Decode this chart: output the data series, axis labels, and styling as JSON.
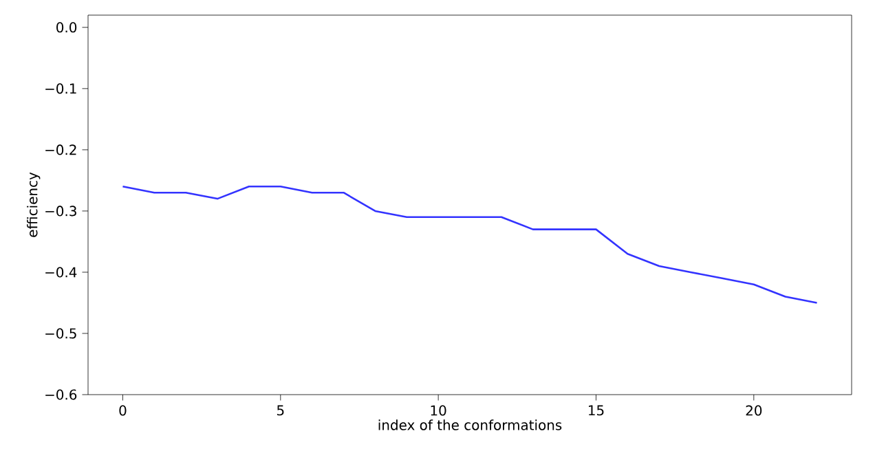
{
  "chart_data": {
    "type": "line",
    "xlabel": "index of the conformations",
    "ylabel": "efficiency",
    "x": [
      0,
      1,
      2,
      3,
      4,
      5,
      6,
      7,
      8,
      9,
      10,
      11,
      12,
      13,
      14,
      15,
      16,
      17,
      18,
      19,
      20,
      21,
      22
    ],
    "series": [
      {
        "color": "#3333ff",
        "values": [
          -0.26,
          -0.27,
          -0.27,
          -0.28,
          -0.26,
          -0.26,
          -0.27,
          -0.27,
          -0.3,
          -0.31,
          -0.31,
          -0.31,
          -0.31,
          -0.33,
          -0.33,
          -0.33,
          -0.37,
          -0.39,
          -0.4,
          -0.41,
          -0.42,
          -0.44,
          -0.45
        ]
      }
    ],
    "xlim": [
      -1.1,
      23.1
    ],
    "ylim": [
      -0.6,
      0.02
    ],
    "xticks": [
      0,
      5,
      10,
      15,
      20
    ],
    "yticks": [
      {
        "value": 0,
        "label": "0.0"
      },
      {
        "value": -0.1,
        "label": "−0.1"
      },
      {
        "value": -0.2,
        "label": "−0.2"
      },
      {
        "value": -0.3,
        "label": "−0.3"
      },
      {
        "value": -0.4,
        "label": "−0.4"
      },
      {
        "value": -0.5,
        "label": "−0.5"
      },
      {
        "value": -0.6,
        "label": "−0.6"
      }
    ],
    "grid": false,
    "marker": "none",
    "line_style": "solid"
  }
}
